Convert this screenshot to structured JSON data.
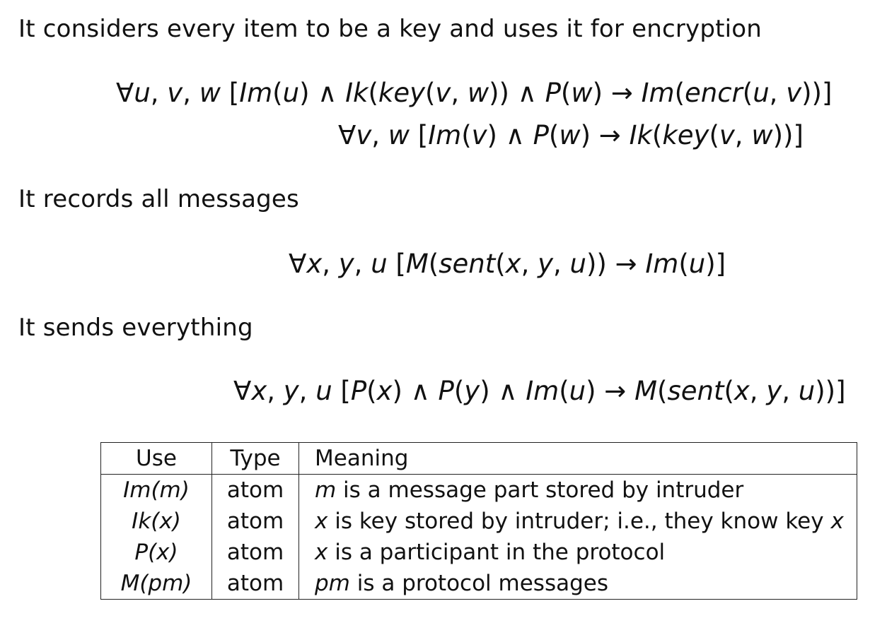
{
  "sections": [
    {
      "heading": "It considers every item to be a key and uses it for encryption",
      "formulas": [
        "∀u, v, w [Im(u) ∧ Ik(key(v, w)) ∧ P(w) → Im(encr(u, v))]",
        "∀v, w [Im(v) ∧ P(w) → Ik(key(v, w))]"
      ]
    },
    {
      "heading": "It records all messages",
      "formulas": [
        "∀x, y, u [M(sent(x, y, u)) → Im(u)]"
      ]
    },
    {
      "heading": "It sends everything",
      "formulas": [
        "∀x, y, u [P(x) ∧ P(y) ∧ Im(u) → M(sent(x, y, u))]"
      ]
    }
  ],
  "table": {
    "headers": [
      "Use",
      "Type",
      "Meaning"
    ],
    "rows": [
      {
        "use": "Im(m)",
        "type": "atom",
        "meaning_var": "m",
        "meaning_rest": " is a message part stored by intruder",
        "meaning_tail": ""
      },
      {
        "use": "Ik(x)",
        "type": "atom",
        "meaning_var": "x",
        "meaning_rest": " is key stored by intruder; i.e., they know key ",
        "meaning_tail": "x"
      },
      {
        "use": "P(x)",
        "type": "atom",
        "meaning_var": "x",
        "meaning_rest": " is a participant in the protocol",
        "meaning_tail": ""
      },
      {
        "use": "M(pm)",
        "type": "atom",
        "meaning_var": "pm",
        "meaning_rest": " is a protocol messages",
        "meaning_tail": ""
      }
    ]
  }
}
